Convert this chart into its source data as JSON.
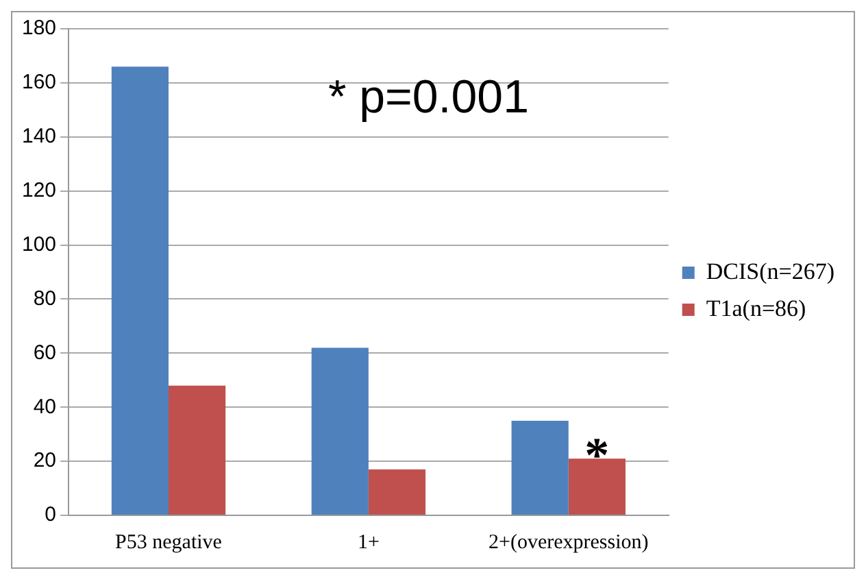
{
  "chart_data": {
    "type": "bar",
    "categories": [
      "P53 negative",
      "1+",
      "2+(overexpression)"
    ],
    "series": [
      {
        "name": "DCIS(n=267)",
        "color": "#4f81bd",
        "values": [
          166,
          62,
          35
        ]
      },
      {
        "name": "T1a(n=86)",
        "color": "#c0504d",
        "values": [
          48,
          17,
          21
        ]
      }
    ],
    "ylim": [
      0,
      180
    ],
    "yticks": [
      0,
      20,
      40,
      60,
      80,
      100,
      120,
      140,
      160,
      180
    ],
    "grid": "y",
    "legend": "right",
    "annotations": [
      "* p=0.001",
      {
        "text": "*",
        "x": "2+(overexpression)",
        "y": 21
      }
    ]
  }
}
